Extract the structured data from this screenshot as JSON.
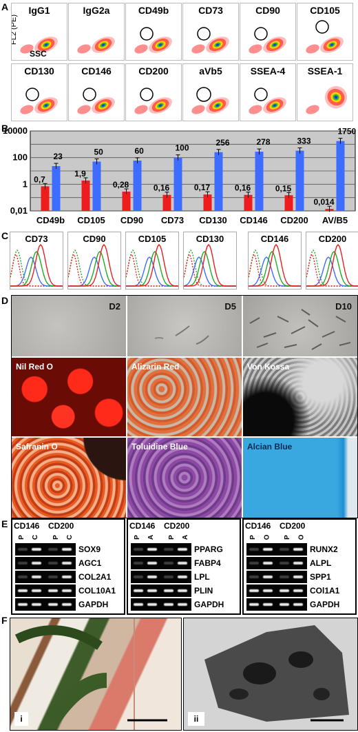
{
  "panel_labels": {
    "A": "A",
    "B": "B",
    "C": "C",
    "D": "D",
    "E": "E",
    "F": "F"
  },
  "panel_a": {
    "y_axis_label": "FL2 (PE)",
    "x_axis_label": "SSC",
    "markers": [
      "IgG1",
      "IgG2a",
      "CD49b",
      "CD73",
      "CD90",
      "CD105",
      "CD130",
      "CD146",
      "CD200",
      "aVb5",
      "SSEA-4",
      "SSEA-1"
    ]
  },
  "chart_data": {
    "type": "bar",
    "y_scale": "log",
    "ylim": [
      0.01,
      10000
    ],
    "y_ticks": [
      "10000",
      "100",
      "1",
      "0,01"
    ],
    "categories": [
      "CD49b",
      "CD105",
      "CD90",
      "CD73",
      "CD130",
      "CD146",
      "CD200",
      "AV/B5"
    ],
    "series": [
      {
        "color": "#ee1c1c",
        "values": [
          0.7,
          1.9,
          0.28,
          0.16,
          0.17,
          0.16,
          0.15,
          0.014
        ],
        "labels": [
          "0,7",
          "1,9",
          "0,28",
          "0,16",
          "0,17",
          "0,16",
          "0,15",
          "0,014"
        ]
      },
      {
        "color": "#3d6cff",
        "values": [
          23,
          50,
          60,
          100,
          256,
          278,
          333,
          1750
        ],
        "labels": [
          "23",
          "50",
          "60",
          "100",
          "256",
          "278",
          "333",
          "1750"
        ]
      }
    ],
    "grid": true
  },
  "panel_c": {
    "markers": [
      "CD73",
      "CD90",
      "CD105",
      "CD130",
      "CD146",
      "CD200"
    ]
  },
  "panel_d": {
    "time_points": [
      "D2",
      "D5",
      "D10"
    ],
    "stains_row1": [
      "Nil Red O",
      "Alizarin Red",
      "Von Kossa"
    ],
    "stains_row2": [
      "Safranin O",
      "Toluidine Blue",
      "Alcian Blue"
    ]
  },
  "panel_e": {
    "groups": [
      {
        "headers": [
          "CD146",
          "CD200"
        ],
        "lanes": [
          "P",
          "C",
          "P",
          "C"
        ],
        "genes": [
          "SOX9",
          "AGC1",
          "COL2A1",
          "COL10A1",
          "GAPDH"
        ]
      },
      {
        "headers": [
          "CD146",
          "CD200"
        ],
        "lanes": [
          "P",
          "A",
          "P",
          "A"
        ],
        "genes": [
          "PPARG",
          "FABP4",
          "LPL",
          "PLIN",
          "GAPDH"
        ]
      },
      {
        "headers": [
          "CD146",
          "CD200"
        ],
        "lanes": [
          "P",
          "O",
          "P",
          "O"
        ],
        "genes": [
          "RUNX2",
          "ALPL",
          "SPP1",
          "COl1A1",
          "GAPDH"
        ]
      }
    ]
  },
  "panel_f": {
    "subpanels": [
      "i",
      "ii"
    ]
  },
  "colors": {
    "red": "#ee1c1c",
    "blue": "#3d6cff",
    "green": "#22aa22",
    "grid_bg": "#c9c9c9"
  }
}
